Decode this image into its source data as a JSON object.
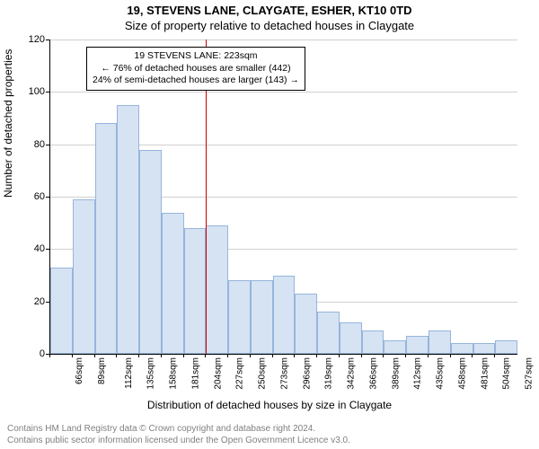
{
  "title_main": "19, STEVENS LANE, CLAYGATE, ESHER, KT10 0TD",
  "title_sub": "Size of property relative to detached houses in Claygate",
  "ylabel": "Number of detached properties",
  "xlabel": "Distribution of detached houses by size in Claygate",
  "chart": {
    "type": "histogram",
    "ylim": [
      0,
      120
    ],
    "ytick_step": 20,
    "xticks": [
      "66sqm",
      "89sqm",
      "112sqm",
      "135sqm",
      "158sqm",
      "181sqm",
      "204sqm",
      "227sqm",
      "250sqm",
      "273sqm",
      "296sqm",
      "319sqm",
      "342sqm",
      "366sqm",
      "389sqm",
      "412sqm",
      "435sqm",
      "458sqm",
      "481sqm",
      "504sqm",
      "527sqm"
    ],
    "values": [
      33,
      59,
      88,
      95,
      78,
      54,
      48,
      49,
      28,
      28,
      30,
      23,
      16,
      12,
      9,
      5,
      7,
      9,
      4,
      4,
      5
    ],
    "bar_fill": "#d6e3f3",
    "bar_border": "#96b5db",
    "background_color": "#ffffff",
    "grid_color": "#d0d0d0",
    "marker_x_index": 7.0,
    "marker_color": "#cc0000",
    "label_fontsize": 12,
    "tick_fontsize": 11,
    "title_fontsize": 13
  },
  "annotation": {
    "line1": "19 STEVENS LANE: 223sqm",
    "line2": "← 76% of detached houses are smaller (442)",
    "line3": "24% of semi-detached houses are larger (143) →"
  },
  "footer": {
    "line1": "Contains HM Land Registry data © Crown copyright and database right 2024.",
    "line2": "Contains public sector information licensed under the Open Government Licence v3.0."
  }
}
